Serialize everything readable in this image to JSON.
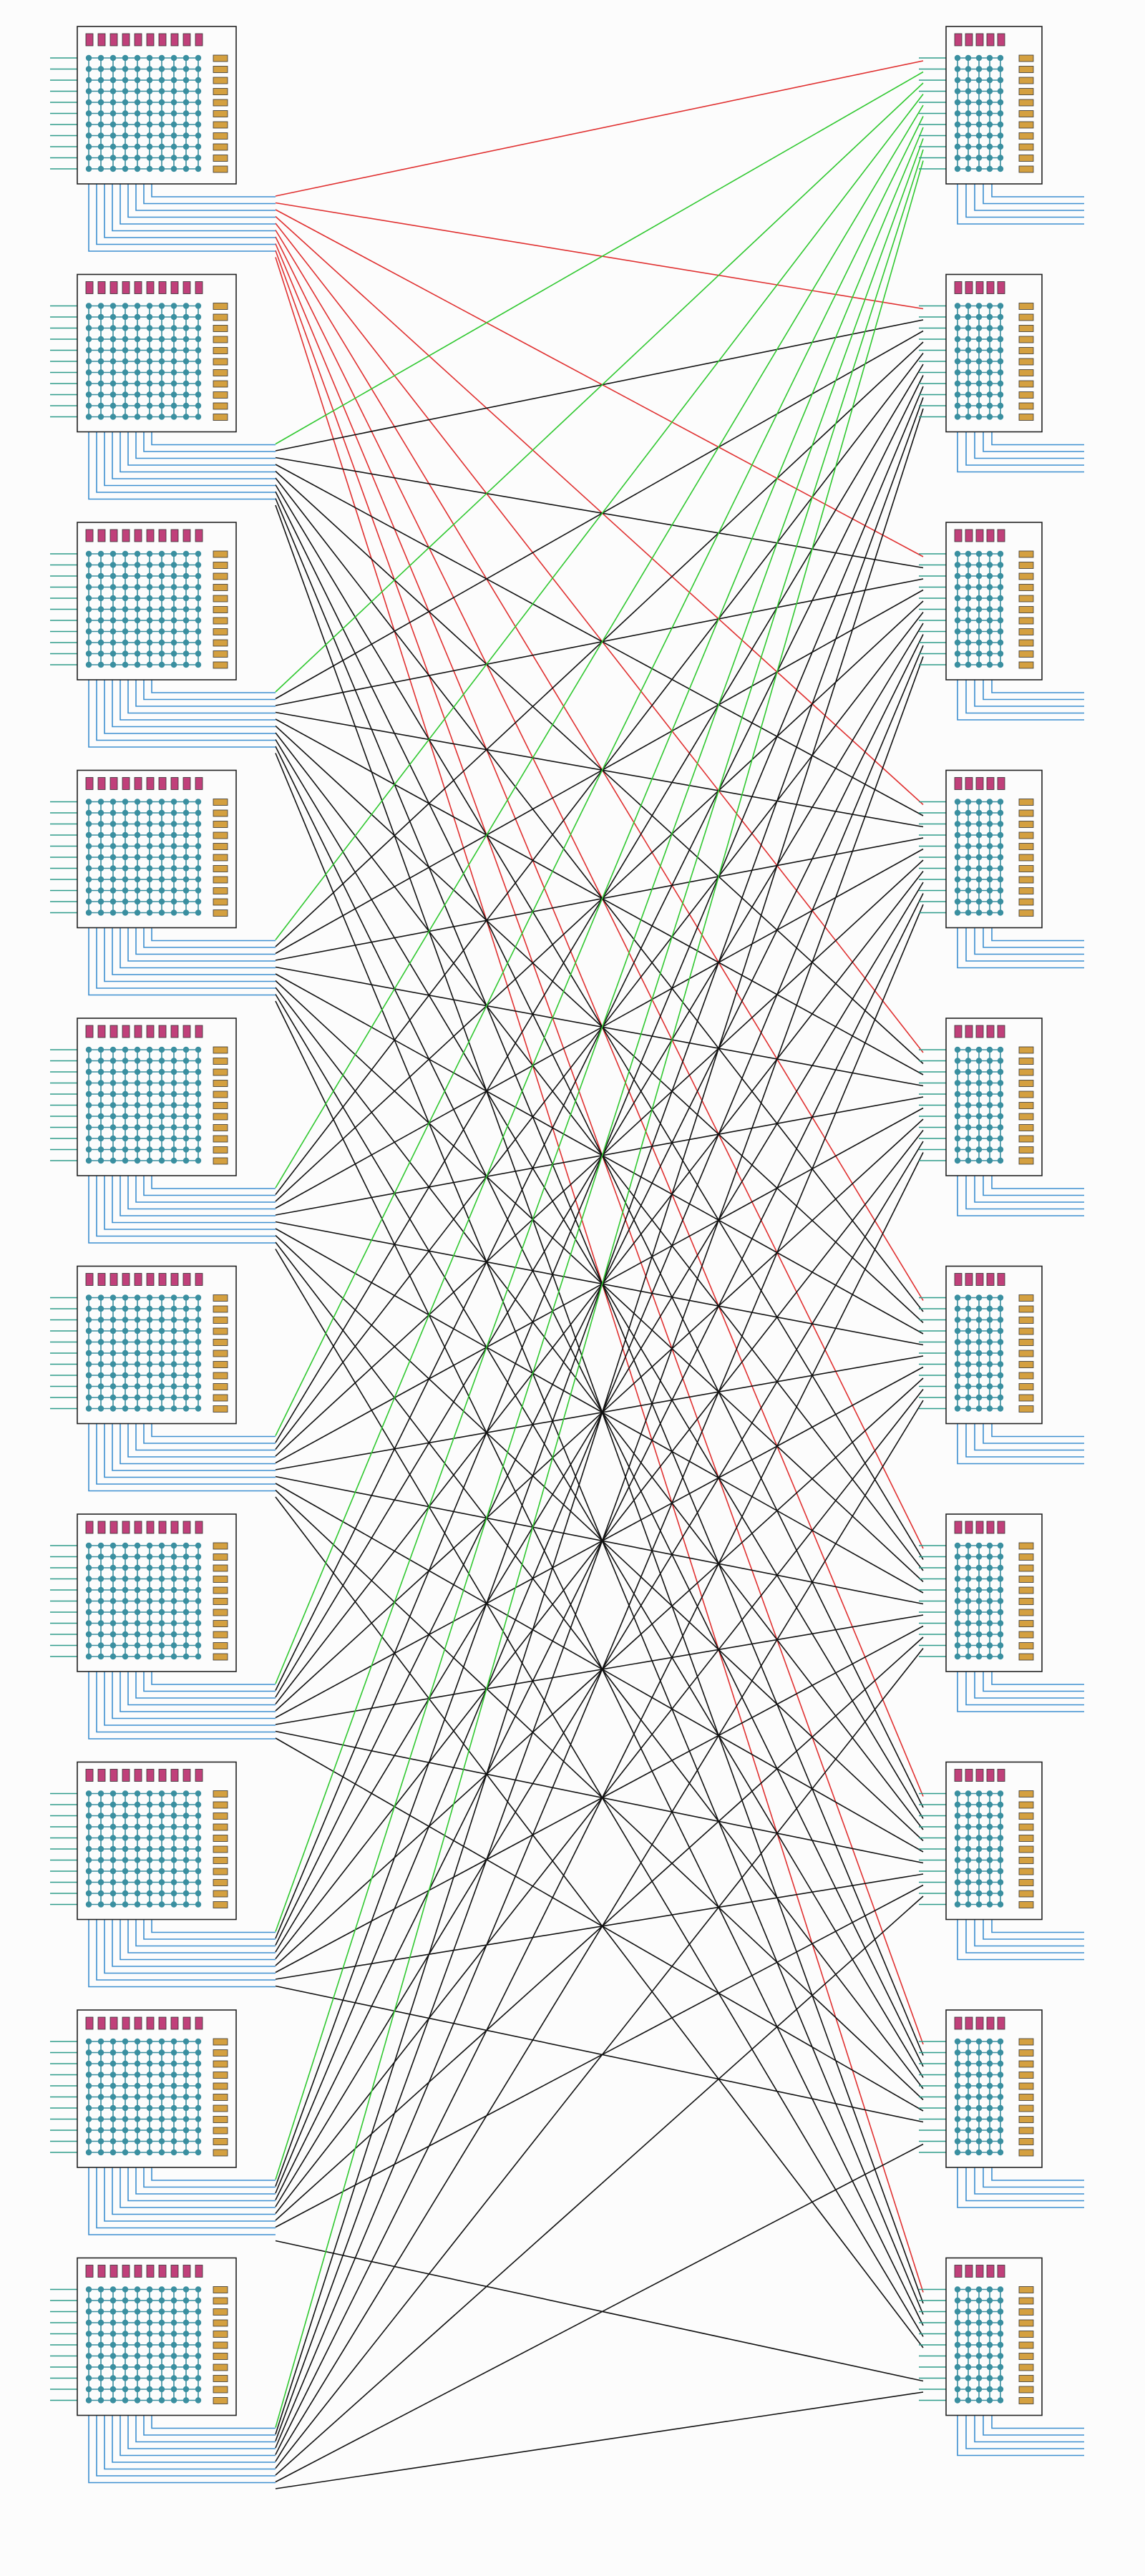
{
  "diagram": {
    "left_column_blocks": 10,
    "right_column_blocks": 10,
    "left_block": {
      "top_indicators": 10,
      "side_indicators": 11,
      "grid_rows": 11,
      "grid_cols": 10,
      "input_lines": 11,
      "output_lines": 9
    },
    "right_block": {
      "top_indicators": 5,
      "side_indicators": 11,
      "grid_rows": 11,
      "grid_cols": 5,
      "input_lines": 11,
      "output_lines": 5
    },
    "colors": {
      "background": "#fcfcfc",
      "block_border": "#222222",
      "node": "#3a8fa0",
      "grid_line": "#3a8fa0",
      "input_line": "#2e9b8a",
      "output_line": "#3d8fd0",
      "top_indicator": "#c0407a",
      "side_indicator": "#d4a040",
      "edge_default": "#111111",
      "edge_red": "#e03030",
      "edge_green": "#30c830"
    },
    "red_source_blocks": [
      0
    ],
    "green_target_blocks": [
      0
    ],
    "dropped_edges": [
      [
        7,
        9
      ],
      [
        6,
        9
      ],
      [
        8,
        8
      ]
    ]
  }
}
